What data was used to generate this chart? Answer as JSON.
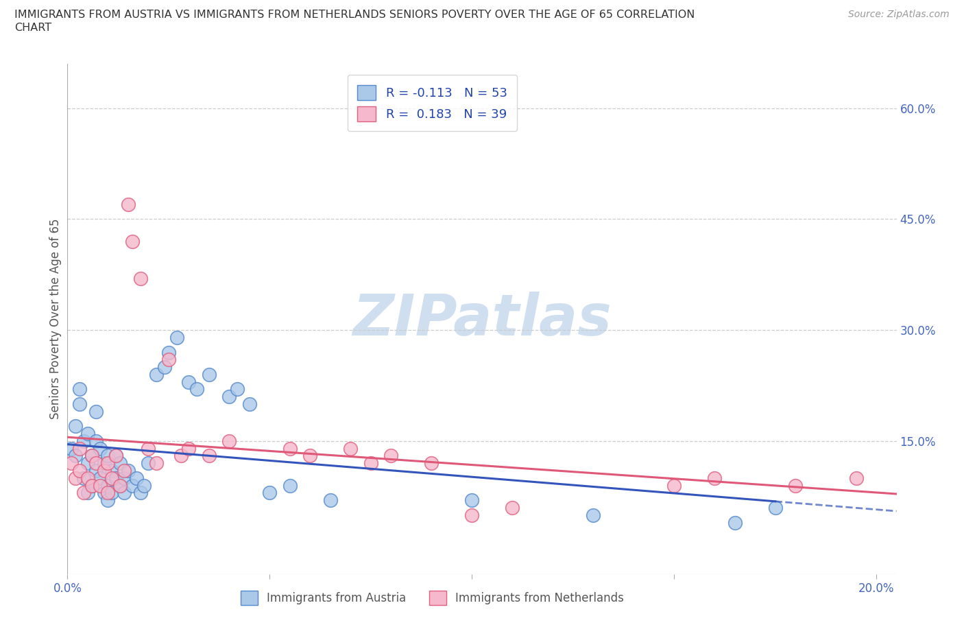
{
  "title_line1": "IMMIGRANTS FROM AUSTRIA VS IMMIGRANTS FROM NETHERLANDS SENIORS POVERTY OVER THE AGE OF 65 CORRELATION",
  "title_line2": "CHART",
  "source": "Source: ZipAtlas.com",
  "ylabel": "Seniors Poverty Over the Age of 65",
  "xlim": [
    0.0,
    0.205
  ],
  "ylim": [
    -0.03,
    0.66
  ],
  "austria_color": "#aac8e8",
  "netherlands_color": "#f5b8cc",
  "austria_edge": "#5588cc",
  "netherlands_edge": "#e06080",
  "austria_R": -0.113,
  "austria_N": 53,
  "netherlands_R": 0.183,
  "netherlands_N": 39,
  "austria_line_color": "#3355bb",
  "netherlands_line_color": "#e05878",
  "watermark_color": "#d0dff0",
  "background_color": "#ffffff",
  "grid_color": "#cccccc",
  "axis_tick_color": "#4466bb",
  "ylabel_color": "#555555",
  "title_color": "#333333",
  "source_color": "#999999",
  "legend_border_color": "#cccccc",
  "legend_text_color": "#2244aa",
  "bottom_legend_color": "#555555",
  "austria_x": [
    0.001,
    0.002,
    0.002,
    0.003,
    0.003,
    0.004,
    0.004,
    0.005,
    0.005,
    0.005,
    0.006,
    0.006,
    0.007,
    0.007,
    0.007,
    0.008,
    0.008,
    0.009,
    0.009,
    0.01,
    0.01,
    0.01,
    0.011,
    0.011,
    0.012,
    0.012,
    0.013,
    0.013,
    0.014,
    0.014,
    0.015,
    0.016,
    0.017,
    0.018,
    0.019,
    0.02,
    0.022,
    0.024,
    0.025,
    0.027,
    0.03,
    0.032,
    0.035,
    0.04,
    0.042,
    0.045,
    0.05,
    0.055,
    0.065,
    0.1,
    0.13,
    0.165,
    0.175
  ],
  "austria_y": [
    0.14,
    0.17,
    0.13,
    0.2,
    0.22,
    0.15,
    0.1,
    0.12,
    0.16,
    0.08,
    0.13,
    0.09,
    0.11,
    0.15,
    0.19,
    0.1,
    0.14,
    0.08,
    0.12,
    0.09,
    0.13,
    0.07,
    0.08,
    0.11,
    0.1,
    0.13,
    0.09,
    0.12,
    0.08,
    0.1,
    0.11,
    0.09,
    0.1,
    0.08,
    0.09,
    0.12,
    0.24,
    0.25,
    0.27,
    0.29,
    0.23,
    0.22,
    0.24,
    0.21,
    0.22,
    0.2,
    0.08,
    0.09,
    0.07,
    0.07,
    0.05,
    0.04,
    0.06
  ],
  "netherlands_x": [
    0.001,
    0.002,
    0.003,
    0.003,
    0.004,
    0.005,
    0.006,
    0.006,
    0.007,
    0.008,
    0.009,
    0.01,
    0.01,
    0.011,
    0.012,
    0.013,
    0.014,
    0.015,
    0.016,
    0.018,
    0.02,
    0.022,
    0.025,
    0.028,
    0.03,
    0.035,
    0.04,
    0.055,
    0.06,
    0.07,
    0.075,
    0.08,
    0.09,
    0.1,
    0.11,
    0.15,
    0.16,
    0.18,
    0.195
  ],
  "netherlands_y": [
    0.12,
    0.1,
    0.11,
    0.14,
    0.08,
    0.1,
    0.09,
    0.13,
    0.12,
    0.09,
    0.11,
    0.08,
    0.12,
    0.1,
    0.13,
    0.09,
    0.11,
    0.47,
    0.42,
    0.37,
    0.14,
    0.12,
    0.26,
    0.13,
    0.14,
    0.13,
    0.15,
    0.14,
    0.13,
    0.14,
    0.12,
    0.13,
    0.12,
    0.05,
    0.06,
    0.09,
    0.1,
    0.09,
    0.1
  ],
  "x_tick_positions": [
    0.0,
    0.05,
    0.1,
    0.15,
    0.2
  ],
  "x_tick_labels": [
    "0.0%",
    "",
    "",
    "",
    "20.0%"
  ],
  "y_tick_positions": [
    0.0,
    0.15,
    0.3,
    0.45,
    0.6
  ],
  "y_tick_labels": [
    "",
    "15.0%",
    "30.0%",
    "45.0%",
    "60.0%"
  ]
}
